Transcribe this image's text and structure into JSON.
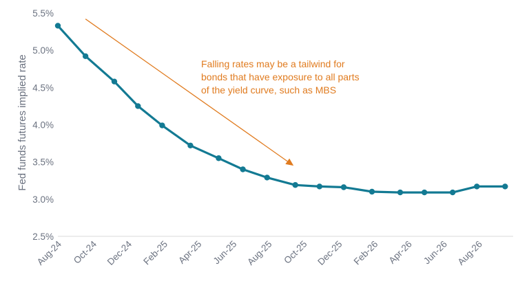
{
  "chart_data": {
    "type": "line",
    "title": "",
    "xlabel": "",
    "ylabel": "Fed funds futures implied rate",
    "ylim": [
      2.5,
      5.5
    ],
    "yticks": [
      "2.5%",
      "3.0%",
      "3.5%",
      "4.0%",
      "4.5%",
      "5.0%",
      "5.5%"
    ],
    "ytick_values": [
      2.5,
      3.0,
      3.5,
      4.0,
      4.5,
      5.0,
      5.5
    ],
    "xticks": [
      "Aug-24",
      "Oct-24",
      "Dec-24",
      "Feb-25",
      "Apr-25",
      "Jun-25",
      "Aug-25",
      "Oct-25",
      "Dec-25",
      "Feb-26",
      "Apr-26",
      "Jun-26",
      "Aug-26"
    ],
    "xrange": [
      "2024-08-01",
      "2026-09-30"
    ],
    "grid": false,
    "series": [
      {
        "color": "#137a93",
        "x": [
          "2024-08-01",
          "2024-09-18",
          "2024-11-07",
          "2024-12-18",
          "2025-01-29",
          "2025-03-19",
          "2025-05-07",
          "2025-06-18",
          "2025-07-30",
          "2025-09-17",
          "2025-10-29",
          "2025-12-10",
          "2026-01-28",
          "2026-03-18",
          "2026-04-29",
          "2026-06-17",
          "2026-07-29",
          "2026-09-16"
        ],
        "values": [
          5.33,
          4.92,
          4.58,
          4.25,
          3.99,
          3.72,
          3.55,
          3.4,
          3.29,
          3.19,
          3.17,
          3.16,
          3.1,
          3.09,
          3.09,
          3.09,
          3.17,
          3.17
        ]
      }
    ],
    "annotation": {
      "lines": [
        "Falling rates may be a tailwind for",
        "bonds that have exposure to all parts",
        "of the yield curve, such as MBS"
      ],
      "color": "#e07b1f",
      "arrow_from": {
        "x": "2024-09-18",
        "y": 5.42
      },
      "arrow_to": {
        "x": "2025-09-14",
        "y": 3.45
      }
    }
  }
}
